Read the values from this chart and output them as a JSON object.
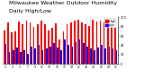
{
  "title": "  Milwaukee Weather Outdoor Humidity",
  "subtitle": "  Daily High/Low",
  "title_fontsize": 4.5,
  "highs": [
    72,
    88,
    68,
    70,
    90,
    85,
    92,
    88,
    80,
    85,
    92,
    85,
    72,
    78,
    87,
    52,
    70,
    85,
    88,
    92,
    95,
    88,
    85,
    82,
    95,
    90,
    93,
    88,
    85,
    82,
    78
  ],
  "lows": [
    42,
    25,
    30,
    36,
    25,
    30,
    22,
    38,
    33,
    40,
    30,
    33,
    38,
    44,
    36,
    30,
    52,
    40,
    38,
    46,
    52,
    44,
    38,
    34,
    30,
    36,
    40,
    34,
    38,
    34,
    30
  ],
  "xlabels": [
    "1",
    "",
    "3",
    "",
    "5",
    "",
    "7",
    "",
    "9",
    "",
    "11",
    "",
    "13",
    "",
    "15",
    "",
    "17",
    "",
    "19",
    "",
    "21",
    "",
    "23",
    "",
    "25",
    "",
    "27",
    "",
    "29",
    "",
    "31"
  ],
  "high_color": "#ff0000",
  "low_color": "#0000ff",
  "background_color": "#ffffff",
  "plot_bg": "#ffffff",
  "ylim": [
    0,
    100
  ],
  "yticks": [
    0,
    20,
    40,
    60,
    80,
    100
  ],
  "yticklabels": [
    "0",
    "20",
    "40",
    "60",
    "80",
    "100"
  ],
  "bar_width": 0.42,
  "legend_high": "High",
  "legend_low": "Low",
  "dotted_range": [
    22,
    23,
    24,
    25,
    26,
    27,
    28
  ]
}
